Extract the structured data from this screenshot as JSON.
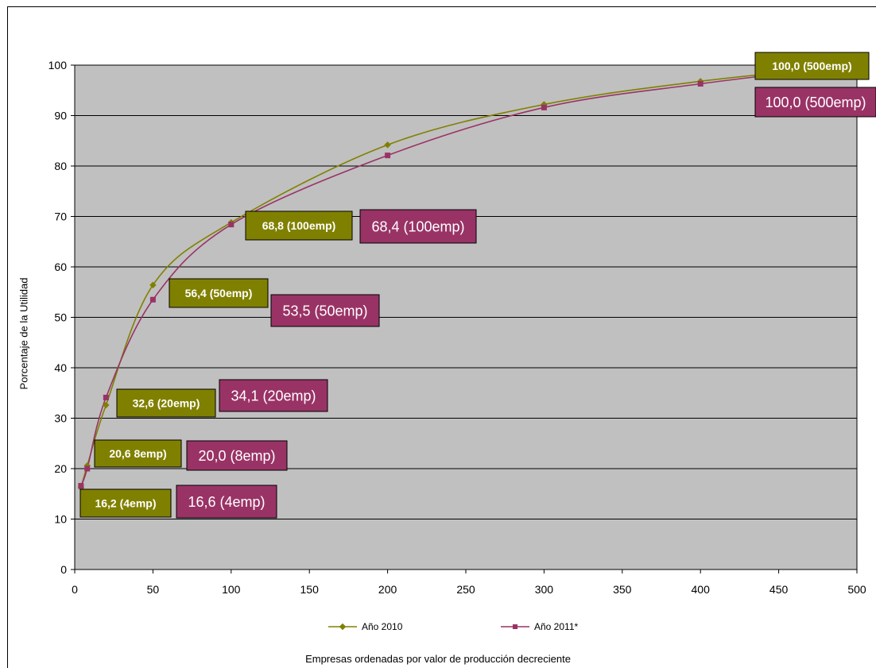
{
  "chart_data": {
    "type": "line",
    "title": "",
    "xlabel": "Empresas ordenadas por valor de producción decreciente",
    "ylabel": "Porcentaje de la Utilidad",
    "xlim": [
      0,
      500
    ],
    "ylim": [
      0,
      100
    ],
    "xticks": [
      "0",
      "50",
      "100",
      "150",
      "200",
      "250",
      "300",
      "350",
      "400",
      "450",
      "500"
    ],
    "yticks": [
      "0",
      "10",
      "20",
      "30",
      "40",
      "50",
      "60",
      "70",
      "80",
      "90",
      "100"
    ],
    "grid": "horizontal",
    "plot_background": "#c0c0c0",
    "legend_position": "bottom",
    "series": [
      {
        "name": "Año 2010",
        "color": "#808000",
        "marker": "diamond",
        "x": [
          4,
          8,
          20,
          50,
          100,
          200,
          300,
          400,
          500
        ],
        "y": [
          16.2,
          20.6,
          32.6,
          56.4,
          68.8,
          84.2,
          92.2,
          96.8,
          100.0
        ]
      },
      {
        "name": "Año 2011*",
        "color": "#993366",
        "marker": "square",
        "x": [
          4,
          8,
          20,
          50,
          100,
          200,
          300,
          400,
          500
        ],
        "y": [
          16.6,
          20.0,
          34.1,
          53.5,
          68.4,
          82.1,
          91.6,
          96.3,
          100.0
        ]
      }
    ],
    "annotations": [
      {
        "text": "16,2 (4emp)",
        "series": 0
      },
      {
        "text": "20,6 8emp)",
        "series": 0
      },
      {
        "text": "32,6 (20emp)",
        "series": 0
      },
      {
        "text": "56,4 (50emp)",
        "series": 0
      },
      {
        "text": "68,8 (100emp)",
        "series": 0
      },
      {
        "text": "100,0 (500emp)",
        "series": 0
      },
      {
        "text": "16,6 (4emp)",
        "series": 1
      },
      {
        "text": "20,0 (8emp)",
        "series": 1
      },
      {
        "text": "34,1 (20emp)",
        "series": 1
      },
      {
        "text": "53,5 (50emp)",
        "series": 1
      },
      {
        "text": "68,4 (100emp)",
        "series": 1
      },
      {
        "text": "100,0 (500emp)",
        "series": 1
      }
    ]
  }
}
